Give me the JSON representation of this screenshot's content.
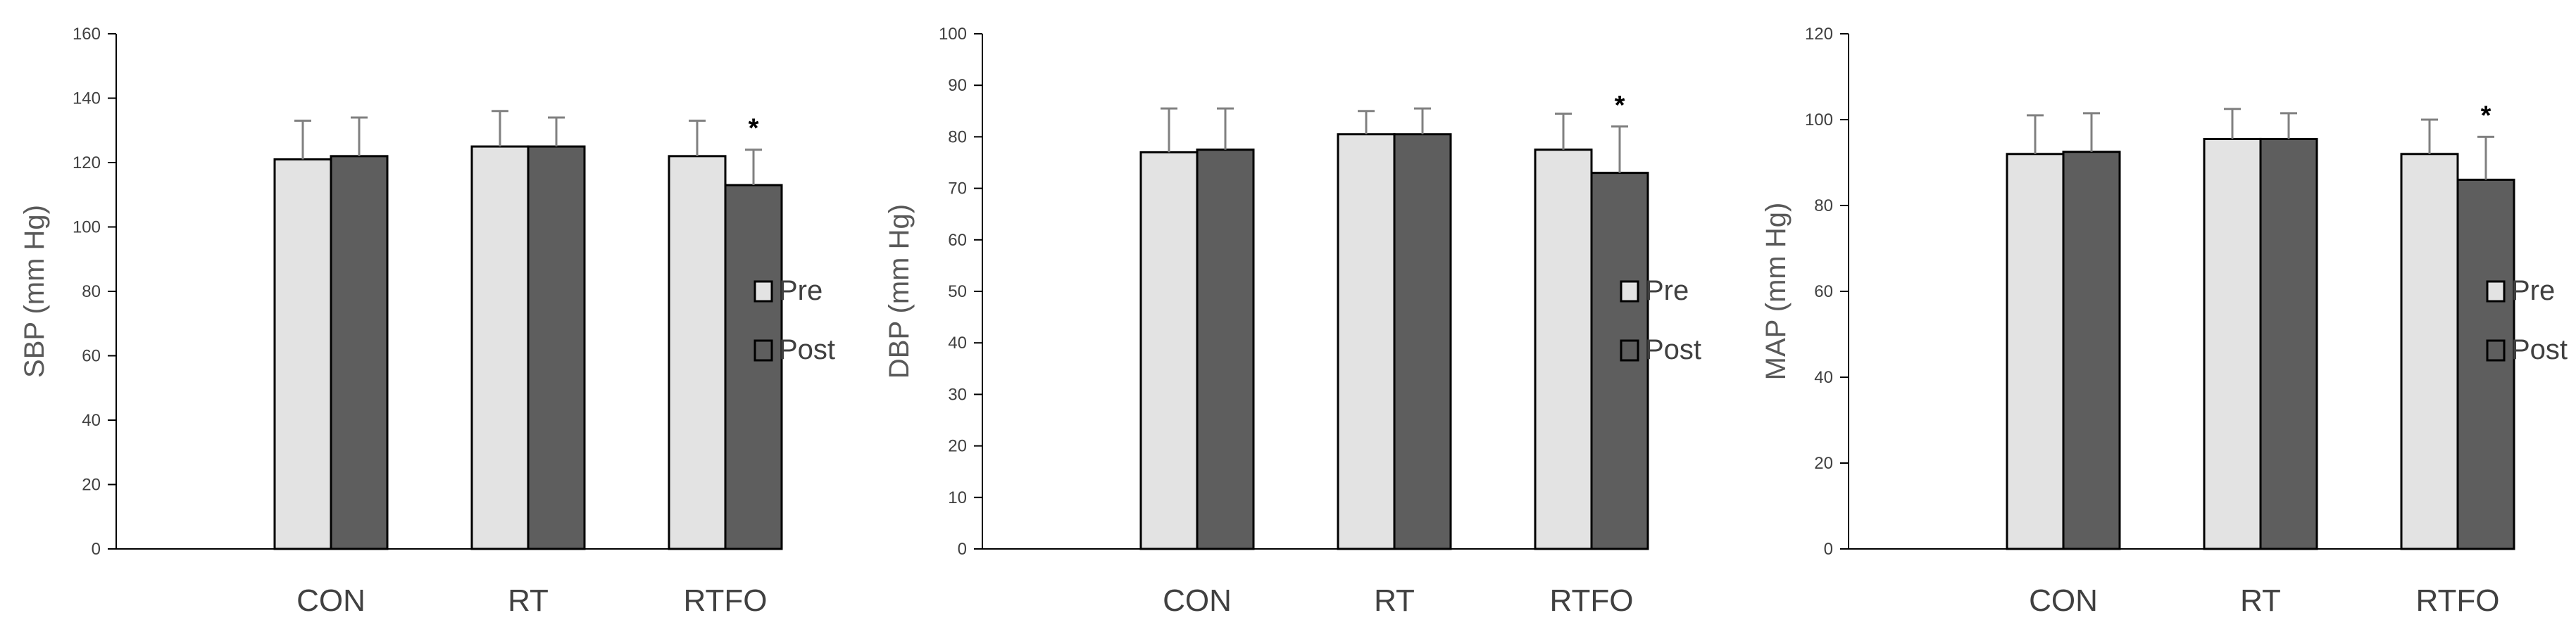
{
  "colors": {
    "pre": "#e3e3e3",
    "post": "#5e5e5e",
    "bar_stroke": "#000000",
    "axis": "#000000",
    "error_bar": "#808080"
  },
  "chart_data": [
    {
      "type": "bar",
      "title": "",
      "xlabel": "",
      "ylabel": "SBP  (mm Hg)",
      "ylim": [
        0,
        160
      ],
      "yticks": [
        "0",
        "20",
        "40",
        "60",
        "80",
        "100",
        "120",
        "140",
        "160"
      ],
      "categories": [
        "CON",
        "RT",
        "RTFO"
      ],
      "series": [
        {
          "name": "Pre",
          "values": [
            121,
            125,
            122
          ],
          "errors": [
            12,
            11,
            11
          ]
        },
        {
          "name": "Post",
          "values": [
            122,
            125,
            113
          ],
          "errors": [
            12,
            9,
            11
          ]
        }
      ],
      "annotations": [
        {
          "category": "RTFO",
          "series": "Post",
          "text": "*"
        }
      ],
      "legend": "right",
      "grid": false
    },
    {
      "type": "bar",
      "title": "",
      "xlabel": "",
      "ylabel": "DBP  (mm Hg)",
      "ylim": [
        0,
        100
      ],
      "yticks": [
        "0",
        "10",
        "20",
        "30",
        "40",
        "50",
        "60",
        "70",
        "80",
        "90",
        "100"
      ],
      "categories": [
        "CON",
        "RT",
        "RTFO"
      ],
      "series": [
        {
          "name": "Pre",
          "values": [
            77,
            80.5,
            77.5
          ],
          "errors": [
            8.5,
            4.5,
            7
          ]
        },
        {
          "name": "Post",
          "values": [
            77.5,
            80.5,
            73
          ],
          "errors": [
            8,
            5,
            9
          ]
        }
      ],
      "annotations": [
        {
          "category": "RTFO",
          "series": "Post",
          "text": "*"
        }
      ],
      "legend": "right",
      "grid": false
    },
    {
      "type": "bar",
      "title": "",
      "xlabel": "",
      "ylabel": "MAP (mm Hg)",
      "ylim": [
        0,
        120
      ],
      "yticks": [
        "0",
        "20",
        "40",
        "60",
        "80",
        "100",
        "120"
      ],
      "categories": [
        "CON",
        "RT",
        "RTFO"
      ],
      "series": [
        {
          "name": "Pre",
          "values": [
            92,
            95.5,
            92
          ],
          "errors": [
            9,
            7,
            8
          ]
        },
        {
          "name": "Post",
          "values": [
            92.5,
            95.5,
            86
          ],
          "errors": [
            9,
            6,
            10
          ]
        }
      ],
      "annotations": [
        {
          "category": "RTFO",
          "series": "Post",
          "text": "*"
        }
      ],
      "legend": "right",
      "grid": false
    }
  ]
}
